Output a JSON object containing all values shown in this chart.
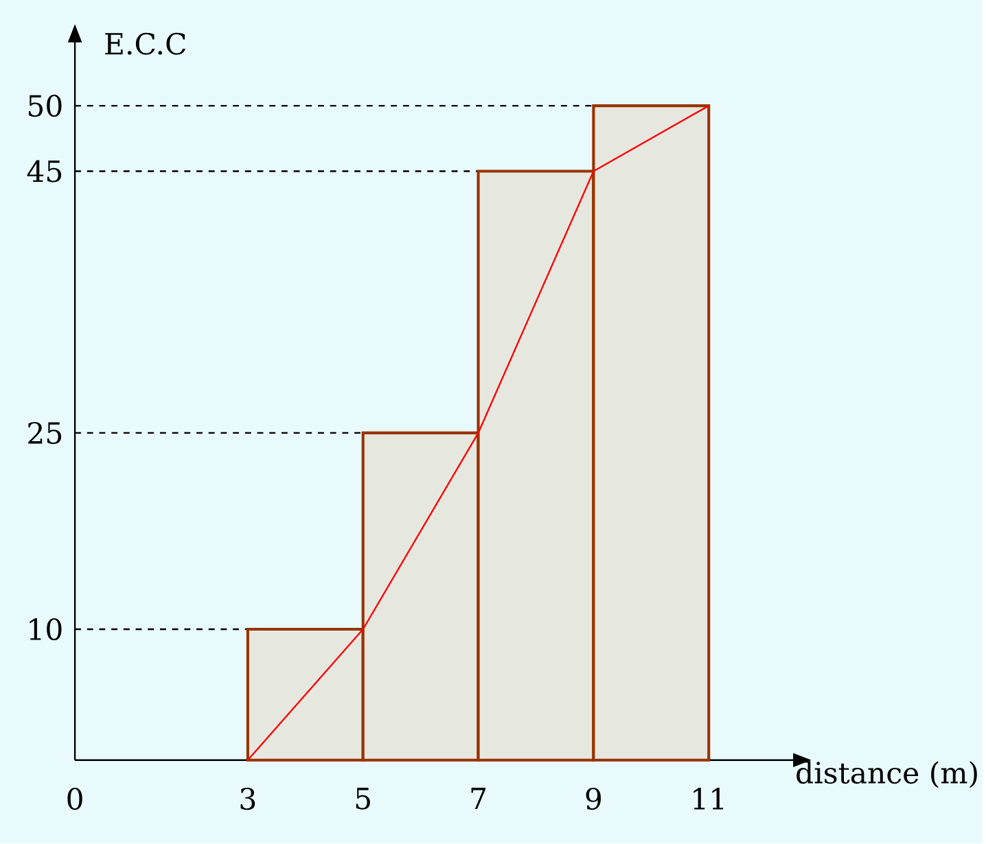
{
  "chart_data": {
    "type": "histogram",
    "xlabel": "distance (m)",
    "ylabel": "E.C.C",
    "bins": [
      3,
      5,
      7,
      9,
      11
    ],
    "values": [
      10,
      25,
      45,
      50
    ],
    "color": "#e6e8e0",
    "series": [
      {
        "type": "line",
        "color": "#ff0000",
        "x": [
          3,
          5,
          7,
          9,
          11
        ],
        "values": [
          0,
          10,
          25,
          45,
          50
        ]
      }
    ],
    "xlim": [
      0,
      12.5
    ],
    "ylim": [
      0,
      55
    ],
    "xticks": [
      0,
      3,
      5,
      7,
      9,
      11
    ],
    "yticks": [
      10,
      25,
      45,
      50
    ],
    "ref_lines": [
      {
        "axis": "y",
        "value": 10,
        "line_style": "dashed"
      },
      {
        "axis": "y",
        "value": 25,
        "line_style": "dashed"
      },
      {
        "axis": "y",
        "value": 45,
        "line_style": "dashed"
      },
      {
        "axis": "y",
        "value": 50,
        "line_style": "dashed"
      }
    ],
    "grid": false
  }
}
